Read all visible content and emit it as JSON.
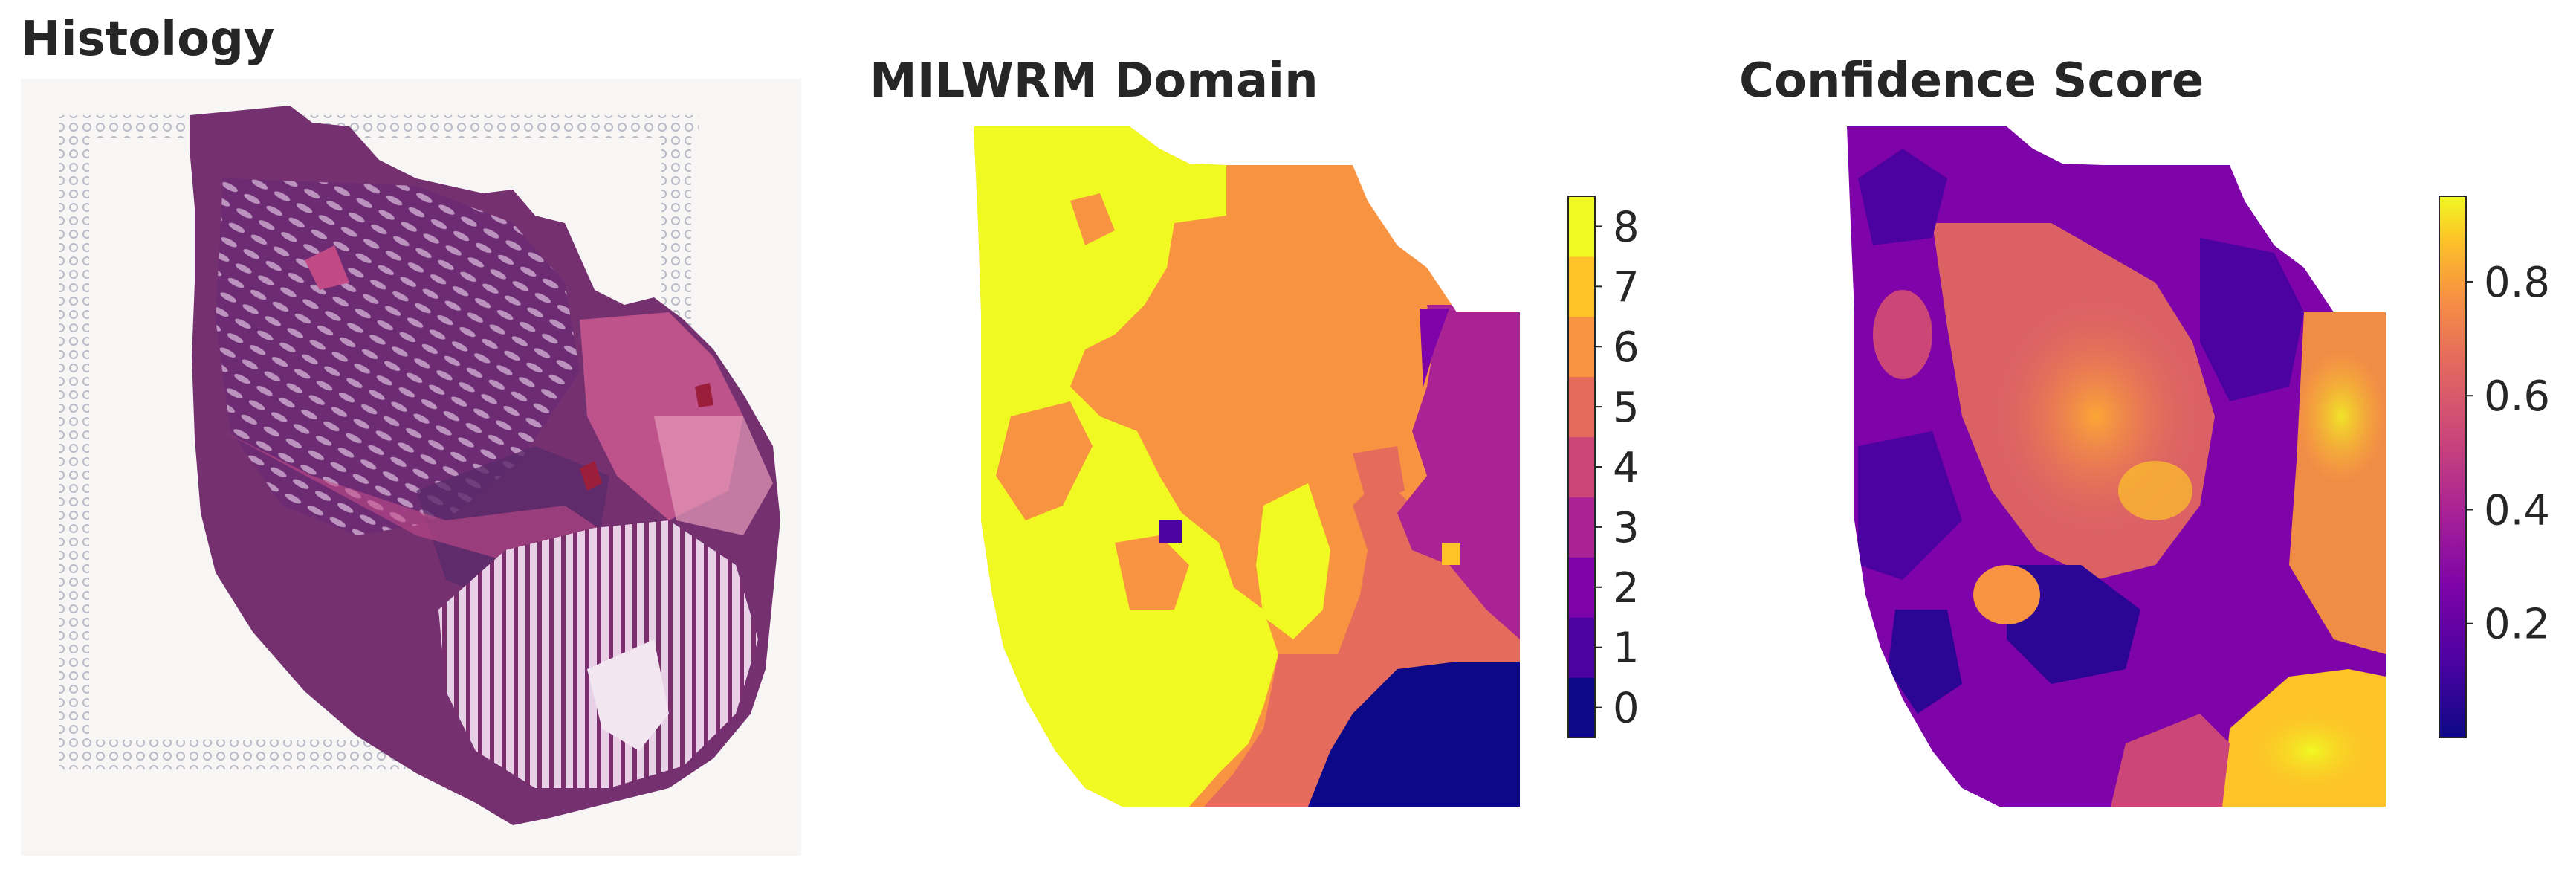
{
  "figure": {
    "panels": [
      {
        "id": "histology",
        "title": "Histology"
      },
      {
        "id": "domain",
        "title": "MILWRM Domain"
      },
      {
        "id": "confidence",
        "title": "Confidence Score"
      }
    ]
  },
  "chart_data": [
    {
      "type": "image",
      "title": "Histology",
      "description_colors": {
        "tissue": "#7a2a6e",
        "stroma": "#c24b8a",
        "background": "#f7f6f4"
      }
    },
    {
      "type": "heatmap",
      "title": "MILWRM Domain",
      "colorbar": {
        "categories": [
          "0",
          "1",
          "2",
          "3",
          "4",
          "5",
          "6",
          "7",
          "8"
        ],
        "colors": [
          "#0d0887",
          "#4c02a1",
          "#7e03a8",
          "#a92395",
          "#cc4778",
          "#e56b5d",
          "#f89441",
          "#fdc328",
          "#f0f921"
        ]
      },
      "regions": [
        {
          "domain": 8,
          "label": "left band"
        },
        {
          "domain": 6,
          "label": "center"
        },
        {
          "domain": 5,
          "label": "lower right"
        },
        {
          "domain": 3,
          "label": "right"
        },
        {
          "domain": 0,
          "label": "bottom right"
        }
      ]
    },
    {
      "type": "heatmap",
      "title": "Confidence Score",
      "colorbar": {
        "ticks": [
          "0.2",
          "0.4",
          "0.6",
          "0.8"
        ],
        "range": [
          0.0,
          0.95
        ],
        "colormap": "plasma"
      }
    }
  ]
}
